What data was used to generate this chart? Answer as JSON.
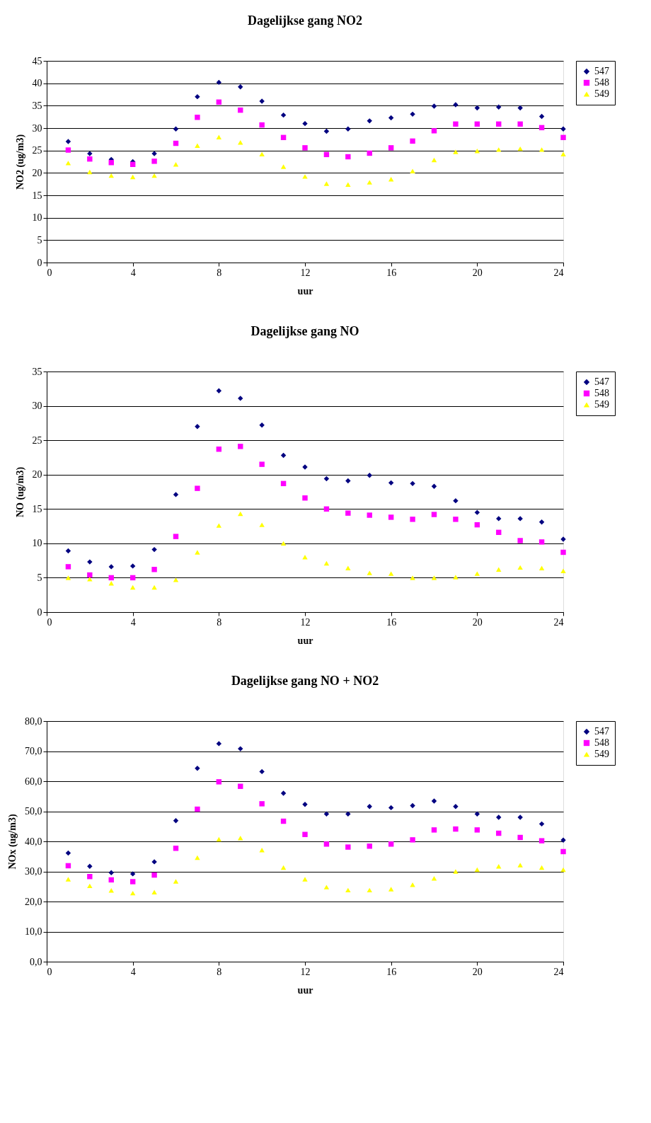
{
  "chart_data": [
    {
      "type": "scatter",
      "title": "Dagelijkse gang NO2",
      "xlabel": "uur",
      "ylabel": "NO2  (ug/m3)",
      "x": [
        1,
        2,
        3,
        4,
        5,
        6,
        7,
        8,
        9,
        10,
        11,
        12,
        13,
        14,
        15,
        16,
        17,
        18,
        19,
        20,
        21,
        22,
        23,
        24
      ],
      "xlim": [
        0,
        24
      ],
      "xticks": [
        0,
        4,
        8,
        12,
        16,
        20,
        24
      ],
      "ylim": [
        0,
        45
      ],
      "yticks": [
        0,
        5,
        10,
        15,
        20,
        25,
        30,
        35,
        40,
        45
      ],
      "grid": "y",
      "legend": "right",
      "series": [
        {
          "name": "547",
          "color": "#000080",
          "marker": "diamond",
          "values": [
            27.0,
            24.3,
            23.0,
            22.5,
            24.3,
            29.8,
            37.0,
            40.2,
            39.2,
            36.0,
            32.9,
            31.0,
            29.3,
            29.8,
            31.6,
            32.3,
            33.1,
            34.9,
            35.2,
            34.5,
            34.7,
            34.5,
            32.6,
            29.8
          ]
        },
        {
          "name": "548",
          "color": "#ff00ff",
          "marker": "square",
          "values": [
            25.1,
            23.1,
            22.3,
            21.9,
            22.6,
            26.6,
            32.4,
            35.8,
            34.0,
            30.7,
            27.9,
            25.6,
            24.1,
            23.6,
            24.4,
            25.6,
            27.1,
            29.4,
            30.9,
            30.9,
            30.9,
            30.9,
            30.1,
            27.9
          ]
        },
        {
          "name": "549",
          "color": "#ffff00",
          "marker": "triangle",
          "values": [
            22.2,
            20.2,
            19.4,
            19.1,
            19.4,
            21.9,
            26.1,
            28.0,
            26.8,
            24.2,
            21.4,
            19.2,
            17.6,
            17.4,
            17.9,
            18.6,
            20.4,
            22.9,
            24.7,
            24.9,
            25.2,
            25.4,
            25.2,
            24.2
          ]
        }
      ]
    },
    {
      "type": "scatter",
      "title": "Dagelijkse gang NO",
      "xlabel": "uur",
      "ylabel": "NO  (ug/m3)",
      "x": [
        1,
        2,
        3,
        4,
        5,
        6,
        7,
        8,
        9,
        10,
        11,
        12,
        13,
        14,
        15,
        16,
        17,
        18,
        19,
        20,
        21,
        22,
        23,
        24
      ],
      "xlim": [
        0,
        24
      ],
      "xticks": [
        0,
        4,
        8,
        12,
        16,
        20,
        24
      ],
      "ylim": [
        0,
        35
      ],
      "yticks": [
        0,
        5,
        10,
        15,
        20,
        25,
        30,
        35
      ],
      "grid": "y",
      "legend": "right",
      "series": [
        {
          "name": "547",
          "color": "#000080",
          "marker": "diamond",
          "values": [
            8.9,
            7.3,
            6.6,
            6.7,
            9.1,
            17.1,
            27.0,
            32.2,
            31.1,
            27.2,
            22.8,
            21.1,
            19.4,
            19.1,
            19.9,
            18.8,
            18.7,
            18.3,
            16.2,
            14.5,
            13.6,
            13.6,
            13.1,
            10.6
          ]
        },
        {
          "name": "548",
          "color": "#ff00ff",
          "marker": "square",
          "values": [
            6.6,
            5.4,
            5.0,
            5.0,
            6.2,
            11.0,
            18.0,
            23.7,
            24.1,
            21.5,
            18.7,
            16.6,
            15.0,
            14.4,
            14.1,
            13.8,
            13.5,
            14.2,
            13.5,
            12.7,
            11.6,
            10.4,
            10.2,
            8.7
          ]
        },
        {
          "name": "549",
          "color": "#ffff00",
          "marker": "triangle",
          "values": [
            5.0,
            4.8,
            4.2,
            3.6,
            3.6,
            4.7,
            8.7,
            12.6,
            14.3,
            12.7,
            10.0,
            8.0,
            7.1,
            6.4,
            5.7,
            5.6,
            5.0,
            5.0,
            5.1,
            5.6,
            6.2,
            6.5,
            6.4,
            6.0
          ]
        }
      ]
    },
    {
      "type": "scatter",
      "title": "Dagelijkse gang NO + NO2",
      "xlabel": "uur",
      "ylabel": "NOx  (ug/m3)",
      "x": [
        1,
        2,
        3,
        4,
        5,
        6,
        7,
        8,
        9,
        10,
        11,
        12,
        13,
        14,
        15,
        16,
        17,
        18,
        19,
        20,
        21,
        22,
        23,
        24
      ],
      "xlim": [
        0,
        24
      ],
      "xticks": [
        0,
        4,
        8,
        12,
        16,
        20,
        24
      ],
      "ylim": [
        0,
        80
      ],
      "yticks": [
        {
          "value": 0,
          "label": "0,0"
        },
        {
          "value": 10,
          "label": "10,0"
        },
        {
          "value": 20,
          "label": "20,0"
        },
        {
          "value": 30,
          "label": "30,0"
        },
        {
          "value": 40,
          "label": "40,0"
        },
        {
          "value": 50,
          "label": "50,0"
        },
        {
          "value": 60,
          "label": "60,0"
        },
        {
          "value": 70,
          "label": "70,0"
        },
        {
          "value": 80,
          "label": "80,0"
        }
      ],
      "grid": "y",
      "legend": "right",
      "series": [
        {
          "name": "547",
          "color": "#000080",
          "marker": "diamond",
          "values": [
            36.1,
            31.7,
            29.6,
            29.2,
            33.2,
            46.9,
            64.3,
            72.5,
            70.8,
            63.2,
            56.0,
            52.3,
            49.1,
            49.1,
            51.6,
            51.2,
            51.9,
            53.4,
            51.6,
            49.1,
            48.0,
            48.0,
            45.8,
            40.4
          ]
        },
        {
          "name": "548",
          "color": "#ff00ff",
          "marker": "square",
          "values": [
            31.9,
            28.3,
            27.2,
            26.6,
            28.8,
            37.7,
            50.7,
            59.8,
            58.3,
            52.5,
            46.7,
            42.3,
            39.1,
            38.1,
            38.4,
            39.1,
            40.5,
            43.8,
            44.1,
            43.8,
            42.7,
            41.3,
            40.2,
            36.6
          ]
        },
        {
          "name": "549",
          "color": "#ffff00",
          "marker": "triangle",
          "values": [
            27.4,
            25.2,
            23.7,
            22.8,
            23.1,
            26.7,
            34.6,
            40.7,
            41.1,
            37.1,
            31.3,
            27.4,
            24.8,
            23.8,
            23.8,
            24.1,
            25.6,
            27.7,
            30.0,
            30.6,
            31.7,
            32.1,
            31.3,
            30.6
          ]
        }
      ]
    }
  ]
}
